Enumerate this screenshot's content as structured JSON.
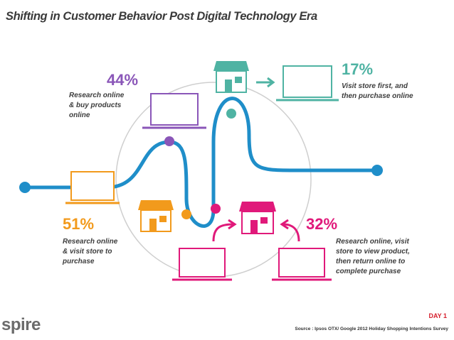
{
  "title": "Shifting in Customer Behavior Post Digital Technology Era",
  "paths": [
    {
      "id": "purple",
      "percent": "44%",
      "line1": "Research online",
      "line2": "& buy products",
      "line3": "online",
      "color": "#8a56b8"
    },
    {
      "id": "teal",
      "percent": "17%",
      "line1": "Visit store first, and",
      "line2": "then purchase online",
      "color": "#4fb3a3"
    },
    {
      "id": "orange",
      "percent": "51%",
      "line1": "Research online",
      "line2": "& visit store to",
      "line3": "purchase",
      "color": "#f29a1c"
    },
    {
      "id": "pink",
      "percent": "32%",
      "line1": "Research online, visit",
      "line2": "store to view product,",
      "line3": "then return online to",
      "line4": "complete purchase",
      "color": "#e0197a"
    }
  ],
  "colors": {
    "flow_line": "#1f8ec9",
    "text_dark": "#3d3d3d",
    "circle": "#cfcfcf"
  },
  "footer": {
    "day": "DAY 1",
    "source": "Source : Ipsos OTX/ Google 2012 Holiday Shopping Intentions Survey"
  },
  "logo": {
    "word": "spire"
  }
}
